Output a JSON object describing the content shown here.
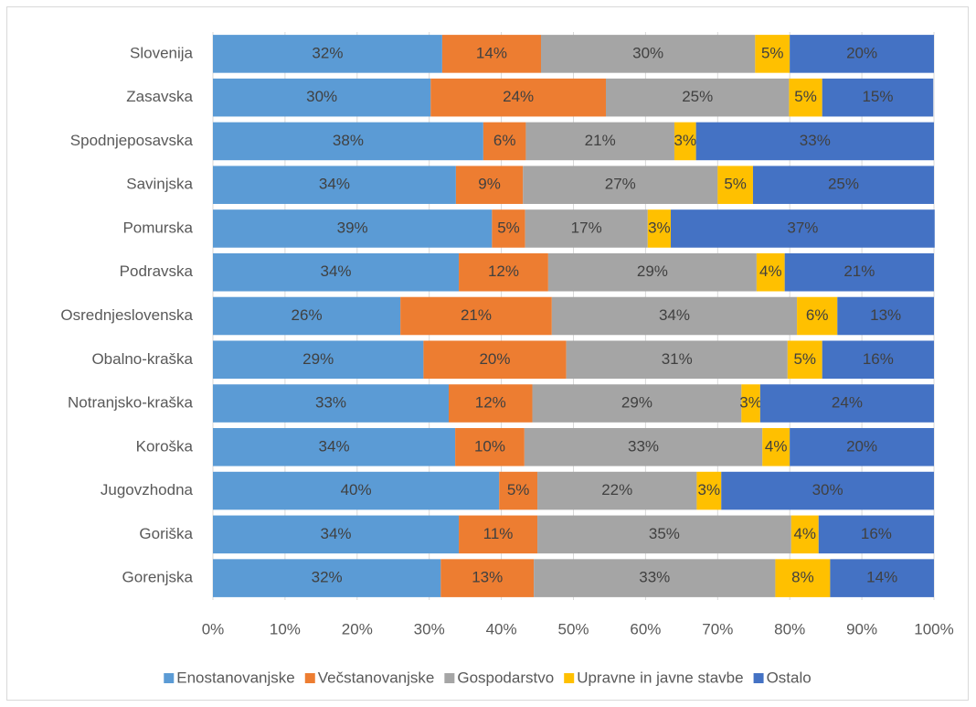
{
  "chart_data": {
    "type": "stacked_barh",
    "categories": [
      "Slovenija",
      "Zasavska",
      "Spodnjeposavska",
      "Savinjska",
      "Pomurska",
      "Podravska",
      "Osrednjeslovenska",
      "Obalno-kraška",
      "Notranjsko-kraška",
      "Koroška",
      "Jugovzhodna",
      "Goriška",
      "Gorenjska"
    ],
    "series": [
      {
        "name": "Enostanovanjske",
        "color": "#5b9bd5",
        "values": [
          31.8,
          30.2,
          37.5,
          33.7,
          38.7,
          34.1,
          26.0,
          29.2,
          32.7,
          33.6,
          39.7,
          34.1,
          31.6
        ],
        "value_labels": [
          "32%",
          "30%",
          "38%",
          "34%",
          "39%",
          "34%",
          "26%",
          "29%",
          "33%",
          "34%",
          "40%",
          "34%",
          "32%"
        ]
      },
      {
        "name": "Večstanovanjske",
        "color": "#ed7d31",
        "values": [
          13.7,
          24.3,
          5.9,
          9.3,
          4.6,
          12.4,
          21.0,
          19.8,
          11.6,
          9.6,
          5.3,
          10.9,
          12.9
        ],
        "value_labels": [
          "14%",
          "24%",
          "6%",
          "9%",
          "5%",
          "12%",
          "21%",
          "20%",
          "12%",
          "10%",
          "5%",
          "11%",
          "13%"
        ]
      },
      {
        "name": "Gospodarstvo",
        "color": "#a5a5a5",
        "values": [
          29.7,
          25.4,
          20.6,
          27.0,
          17.0,
          28.9,
          34.0,
          30.7,
          29.0,
          33.0,
          22.1,
          35.2,
          33.5
        ],
        "value_labels": [
          "30%",
          "25%",
          "21%",
          "27%",
          "17%",
          "29%",
          "34%",
          "31%",
          "29%",
          "33%",
          "22%",
          "35%",
          "33%"
        ]
      },
      {
        "name": "Upravne in javne stavbe",
        "color": "#ffc000",
        "values": [
          4.8,
          4.6,
          3.0,
          4.9,
          3.2,
          3.9,
          5.6,
          4.8,
          2.6,
          3.8,
          3.4,
          3.8,
          7.6
        ],
        "value_labels": [
          "5%",
          "5%",
          "3%",
          "5%",
          "3%",
          "4%",
          "6%",
          "5%",
          "3%",
          "4%",
          "3%",
          "4%",
          "8%"
        ]
      },
      {
        "name": "Ostalo",
        "color": "#4472c4",
        "values": [
          20.0,
          15.4,
          33.0,
          25.1,
          36.6,
          20.7,
          13.4,
          15.5,
          24.1,
          20.0,
          29.5,
          16.0,
          14.4
        ],
        "value_labels": [
          "20%",
          "15%",
          "33%",
          "25%",
          "37%",
          "21%",
          "13%",
          "16%",
          "24%",
          "20%",
          "30%",
          "16%",
          "14%"
        ]
      }
    ],
    "xlim": [
      0,
      100
    ],
    "xticks": [
      {
        "value": 0,
        "label": "0%"
      },
      {
        "value": 10,
        "label": "10%"
      },
      {
        "value": 20,
        "label": "20%"
      },
      {
        "value": 30,
        "label": "30%"
      },
      {
        "value": 40,
        "label": "40%"
      },
      {
        "value": 50,
        "label": "50%"
      },
      {
        "value": 60,
        "label": "60%"
      },
      {
        "value": 70,
        "label": "70%"
      },
      {
        "value": 80,
        "label": "80%"
      },
      {
        "value": 90,
        "label": "90%"
      },
      {
        "value": 100,
        "label": "100%"
      }
    ],
    "grid": true,
    "legend": "bottom"
  }
}
